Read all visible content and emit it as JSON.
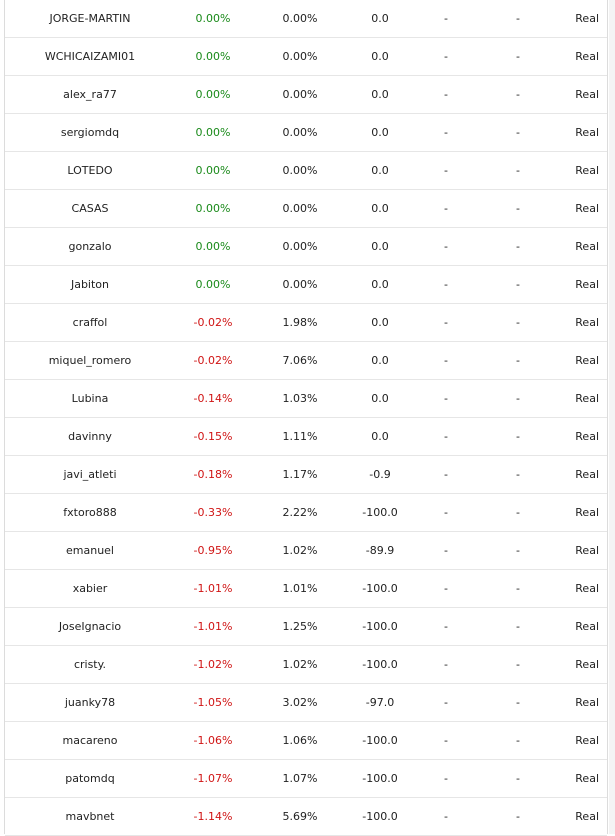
{
  "colors": {
    "positive": "#1a8a1a",
    "negative": "#d01414",
    "text": "#222222"
  },
  "rows": [
    {
      "name": "JORGE-MARTIN",
      "pct": "0.00%",
      "dd": "0.00%",
      "val": "0.0",
      "d1": "-",
      "d2": "-",
      "type": "Real",
      "sign": "pos"
    },
    {
      "name": "WCHICAIZAMI01",
      "pct": "0.00%",
      "dd": "0.00%",
      "val": "0.0",
      "d1": "-",
      "d2": "-",
      "type": "Real",
      "sign": "pos"
    },
    {
      "name": "alex_ra77",
      "pct": "0.00%",
      "dd": "0.00%",
      "val": "0.0",
      "d1": "-",
      "d2": "-",
      "type": "Real",
      "sign": "pos"
    },
    {
      "name": "sergiomdq",
      "pct": "0.00%",
      "dd": "0.00%",
      "val": "0.0",
      "d1": "-",
      "d2": "-",
      "type": "Real",
      "sign": "pos"
    },
    {
      "name": "LOTEDO",
      "pct": "0.00%",
      "dd": "0.00%",
      "val": "0.0",
      "d1": "-",
      "d2": "-",
      "type": "Real",
      "sign": "pos"
    },
    {
      "name": "CASAS",
      "pct": "0.00%",
      "dd": "0.00%",
      "val": "0.0",
      "d1": "-",
      "d2": "-",
      "type": "Real",
      "sign": "pos"
    },
    {
      "name": "gonzalo",
      "pct": "0.00%",
      "dd": "0.00%",
      "val": "0.0",
      "d1": "-",
      "d2": "-",
      "type": "Real",
      "sign": "pos"
    },
    {
      "name": "Jabiton",
      "pct": "0.00%",
      "dd": "0.00%",
      "val": "0.0",
      "d1": "-",
      "d2": "-",
      "type": "Real",
      "sign": "pos"
    },
    {
      "name": "craffol",
      "pct": "-0.02%",
      "dd": "1.98%",
      "val": "0.0",
      "d1": "-",
      "d2": "-",
      "type": "Real",
      "sign": "neg"
    },
    {
      "name": "miquel_romero",
      "pct": "-0.02%",
      "dd": "7.06%",
      "val": "0.0",
      "d1": "-",
      "d2": "-",
      "type": "Real",
      "sign": "neg"
    },
    {
      "name": "Lubina",
      "pct": "-0.14%",
      "dd": "1.03%",
      "val": "0.0",
      "d1": "-",
      "d2": "-",
      "type": "Real",
      "sign": "neg"
    },
    {
      "name": "davinny",
      "pct": "-0.15%",
      "dd": "1.11%",
      "val": "0.0",
      "d1": "-",
      "d2": "-",
      "type": "Real",
      "sign": "neg"
    },
    {
      "name": "javi_atleti",
      "pct": "-0.18%",
      "dd": "1.17%",
      "val": "-0.9",
      "d1": "-",
      "d2": "-",
      "type": "Real",
      "sign": "neg"
    },
    {
      "name": "fxtoro888",
      "pct": "-0.33%",
      "dd": "2.22%",
      "val": "-100.0",
      "d1": "-",
      "d2": "-",
      "type": "Real",
      "sign": "neg"
    },
    {
      "name": "emanuel",
      "pct": "-0.95%",
      "dd": "1.02%",
      "val": "-89.9",
      "d1": "-",
      "d2": "-",
      "type": "Real",
      "sign": "neg"
    },
    {
      "name": "xabier",
      "pct": "-1.01%",
      "dd": "1.01%",
      "val": "-100.0",
      "d1": "-",
      "d2": "-",
      "type": "Real",
      "sign": "neg"
    },
    {
      "name": "JoseIgnacio",
      "pct": "-1.01%",
      "dd": "1.25%",
      "val": "-100.0",
      "d1": "-",
      "d2": "-",
      "type": "Real",
      "sign": "neg"
    },
    {
      "name": "cristy.",
      "pct": "-1.02%",
      "dd": "1.02%",
      "val": "-100.0",
      "d1": "-",
      "d2": "-",
      "type": "Real",
      "sign": "neg"
    },
    {
      "name": "juanky78",
      "pct": "-1.05%",
      "dd": "3.02%",
      "val": "-97.0",
      "d1": "-",
      "d2": "-",
      "type": "Real",
      "sign": "neg"
    },
    {
      "name": "macareno",
      "pct": "-1.06%",
      "dd": "1.06%",
      "val": "-100.0",
      "d1": "-",
      "d2": "-",
      "type": "Real",
      "sign": "neg"
    },
    {
      "name": "patomdq",
      "pct": "-1.07%",
      "dd": "1.07%",
      "val": "-100.0",
      "d1": "-",
      "d2": "-",
      "type": "Real",
      "sign": "neg"
    },
    {
      "name": "mavbnet",
      "pct": "-1.14%",
      "dd": "5.69%",
      "val": "-100.0",
      "d1": "-",
      "d2": "-",
      "type": "Real",
      "sign": "neg"
    }
  ]
}
